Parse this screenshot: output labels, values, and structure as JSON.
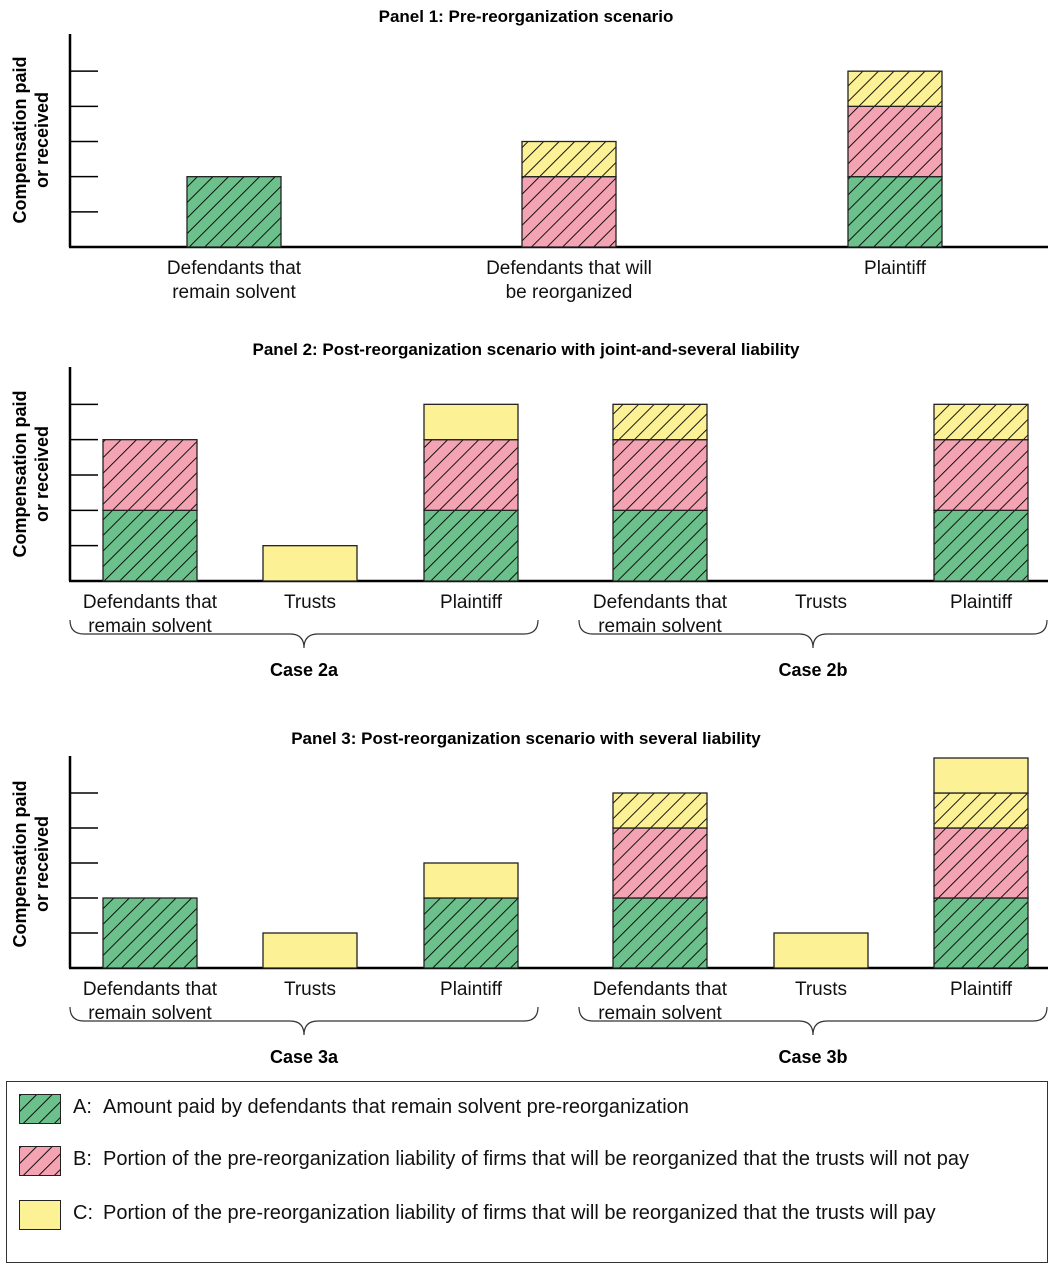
{
  "colors": {
    "A": "#6cc08b",
    "B": "#f4a3b3",
    "C": "#fcf195",
    "hatch": "#000000",
    "axis": "#000000"
  },
  "legend": [
    {
      "key": "A:",
      "pattern": "hatch",
      "text": "Amount paid by defendants that remain solvent pre-reorganization"
    },
    {
      "key": "B:",
      "pattern": "hatch",
      "text": "Portion of the pre-reorganization liability of firms that will be reorganized that the trusts will not pay"
    },
    {
      "key": "C:",
      "pattern": "solid",
      "text": "Portion of the pre-reorganization liability of firms that will be reorganized that the trusts will pay"
    }
  ],
  "chart_data": [
    {
      "type": "bar",
      "stacked": true,
      "title": "Panel 1: Pre-reorganization scenario",
      "ylabel": "Compensation paid or received",
      "ylim": [
        0,
        6
      ],
      "y_ticks": [
        1,
        2,
        3,
        4,
        5
      ],
      "categories": [
        "Defendants that remain solvent",
        "Defendants that will be reorganized",
        "Plaintiff"
      ],
      "cases": [],
      "bars": [
        {
          "category": "Defendants that remain solvent",
          "segments": [
            {
              "component": "A",
              "hatched": true,
              "value": 2
            }
          ]
        },
        {
          "category": "Defendants that will be reorganized",
          "segments": [
            {
              "component": "B",
              "hatched": true,
              "value": 2
            },
            {
              "component": "C",
              "hatched": true,
              "value": 1
            }
          ]
        },
        {
          "category": "Plaintiff",
          "segments": [
            {
              "component": "A",
              "hatched": true,
              "value": 2
            },
            {
              "component": "B",
              "hatched": true,
              "value": 2
            },
            {
              "component": "C",
              "hatched": true,
              "value": 1
            }
          ]
        }
      ]
    },
    {
      "type": "bar",
      "stacked": true,
      "title": "Panel 2: Post-reorganization scenario with joint-and-several liability",
      "ylabel": "Compensation paid or received",
      "ylim": [
        0,
        6
      ],
      "y_ticks": [
        1,
        2,
        3,
        4,
        5
      ],
      "categories": [
        "Defendants that remain solvent",
        "Trusts",
        "Plaintiff",
        "Defendants that remain solvent",
        "Trusts",
        "Plaintiff"
      ],
      "cases": [
        "Case 2a",
        "Case 2b"
      ],
      "bars": [
        {
          "case": "Case 2a",
          "category": "Defendants that remain solvent",
          "segments": [
            {
              "component": "A",
              "hatched": true,
              "value": 2
            },
            {
              "component": "B",
              "hatched": true,
              "value": 2
            }
          ]
        },
        {
          "case": "Case 2a",
          "category": "Trusts",
          "segments": [
            {
              "component": "C",
              "hatched": false,
              "value": 1
            }
          ]
        },
        {
          "case": "Case 2a",
          "category": "Plaintiff",
          "segments": [
            {
              "component": "A",
              "hatched": true,
              "value": 2
            },
            {
              "component": "B",
              "hatched": true,
              "value": 2
            },
            {
              "component": "C",
              "hatched": false,
              "value": 1
            }
          ]
        },
        {
          "case": "Case 2b",
          "category": "Defendants that remain solvent",
          "segments": [
            {
              "component": "A",
              "hatched": true,
              "value": 2
            },
            {
              "component": "B",
              "hatched": true,
              "value": 2
            },
            {
              "component": "C",
              "hatched": true,
              "value": 1
            }
          ]
        },
        {
          "case": "Case 2b",
          "category": "Trusts",
          "segments": []
        },
        {
          "case": "Case 2b",
          "category": "Plaintiff",
          "segments": [
            {
              "component": "A",
              "hatched": true,
              "value": 2
            },
            {
              "component": "B",
              "hatched": true,
              "value": 2
            },
            {
              "component": "C",
              "hatched": true,
              "value": 1
            }
          ]
        }
      ]
    },
    {
      "type": "bar",
      "stacked": true,
      "title": "Panel 3: Post-reorganization scenario with several liability",
      "ylabel": "Compensation paid or received",
      "ylim": [
        0,
        6
      ],
      "y_ticks": [
        1,
        2,
        3,
        4,
        5
      ],
      "categories": [
        "Defendants that remain solvent",
        "Trusts",
        "Plaintiff",
        "Defendants that remain solvent",
        "Trusts",
        "Plaintiff"
      ],
      "cases": [
        "Case 3a",
        "Case 3b"
      ],
      "bars": [
        {
          "case": "Case 3a",
          "category": "Defendants that remain solvent",
          "segments": [
            {
              "component": "A",
              "hatched": true,
              "value": 2
            }
          ]
        },
        {
          "case": "Case 3a",
          "category": "Trusts",
          "segments": [
            {
              "component": "C",
              "hatched": false,
              "value": 1
            }
          ]
        },
        {
          "case": "Case 3a",
          "category": "Plaintiff",
          "segments": [
            {
              "component": "A",
              "hatched": true,
              "value": 2
            },
            {
              "component": "C",
              "hatched": false,
              "value": 1
            }
          ]
        },
        {
          "case": "Case 3b",
          "category": "Defendants that remain solvent",
          "segments": [
            {
              "component": "A",
              "hatched": true,
              "value": 2
            },
            {
              "component": "B",
              "hatched": true,
              "value": 2
            },
            {
              "component": "C",
              "hatched": true,
              "value": 1
            }
          ]
        },
        {
          "case": "Case 3b",
          "category": "Trusts",
          "segments": [
            {
              "component": "C",
              "hatched": false,
              "value": 1
            }
          ]
        },
        {
          "case": "Case 3b",
          "category": "Plaintiff",
          "segments": [
            {
              "component": "A",
              "hatched": true,
              "value": 2
            },
            {
              "component": "B",
              "hatched": true,
              "value": 2
            },
            {
              "component": "C",
              "hatched": true,
              "value": 1
            },
            {
              "component": "C",
              "hatched": false,
              "value": 1
            }
          ]
        }
      ]
    }
  ]
}
